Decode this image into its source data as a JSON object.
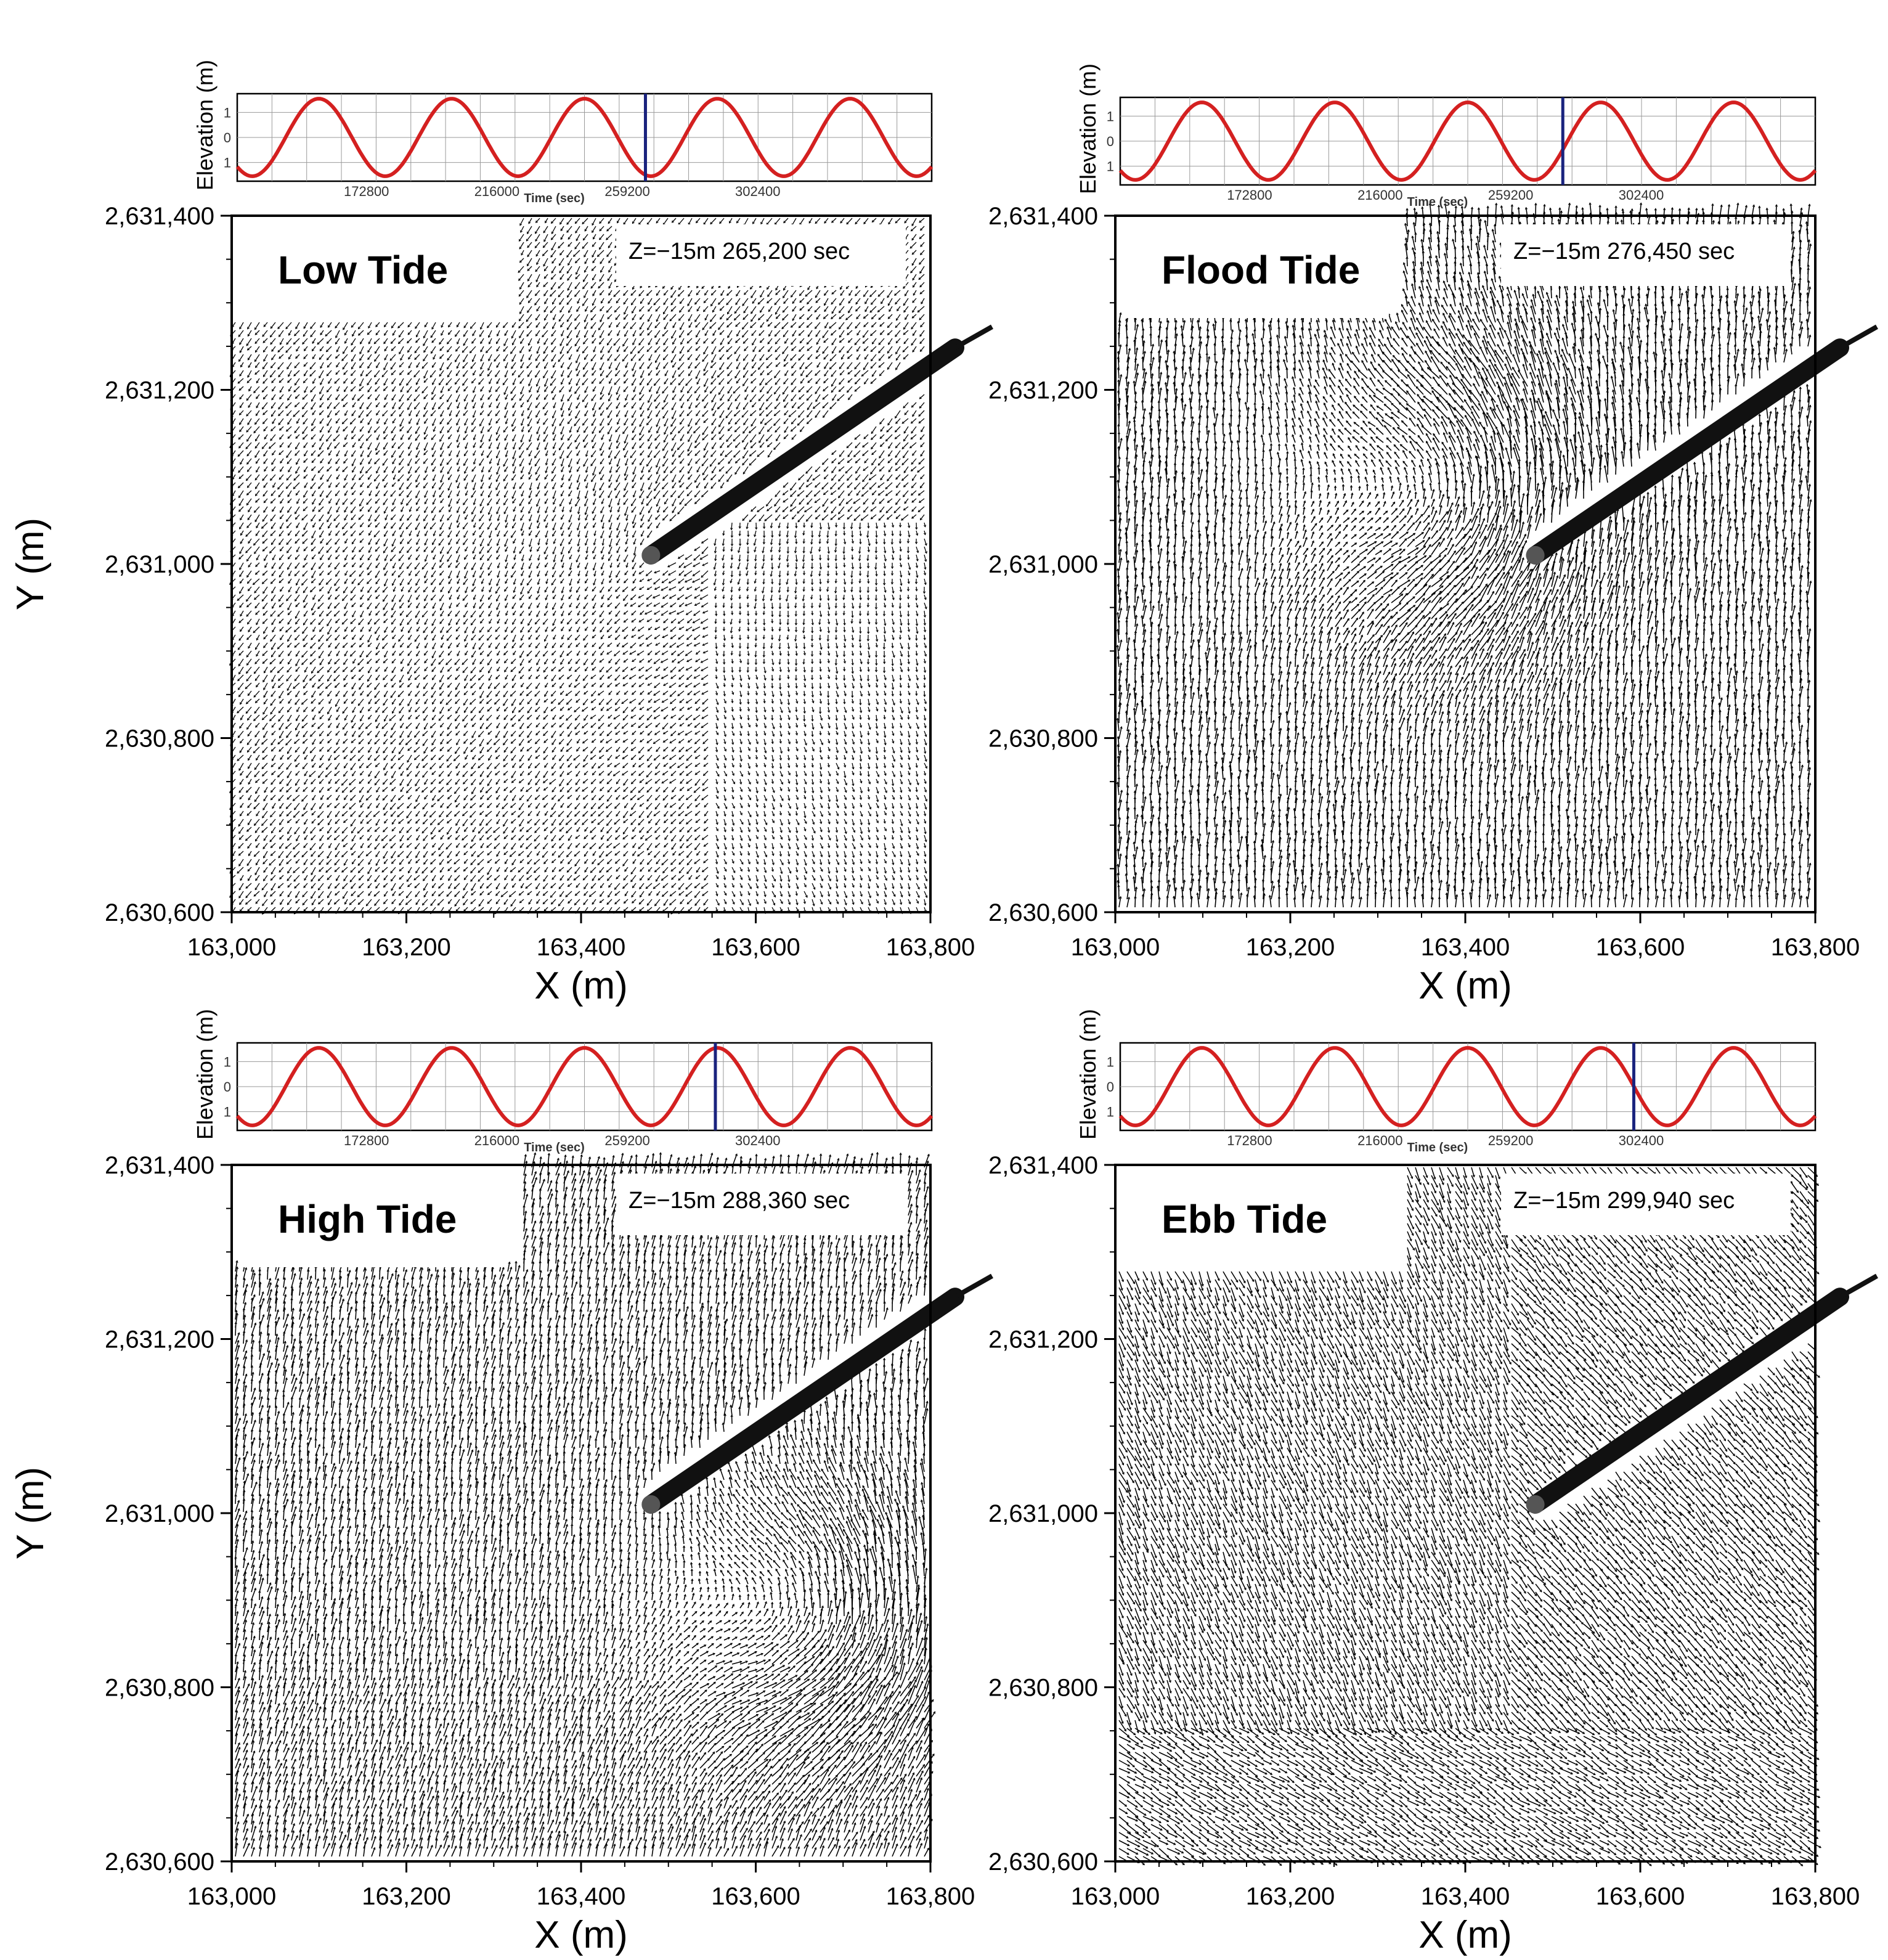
{
  "figure": {
    "colors": {
      "tide_curve": "#d42020",
      "time_marker": "#1a237e",
      "vectors": "#000000",
      "jetty": "#111111",
      "frame": "#000000"
    }
  },
  "chart_data": [
    {
      "type": "vector-field",
      "panel_label": "Low Tide",
      "stamp": "Z=−15m 265,200 sec",
      "xlabel": "X (m)",
      "ylabel": "Y (m)",
      "xlim": [
        163000,
        163800
      ],
      "ylim": [
        2630600,
        2631400
      ],
      "x_ticks": [
        "163,000",
        "163,200",
        "163,400",
        "163,600",
        "163,800"
      ],
      "y_ticks": [
        "2,630,600",
        "2,630,800",
        "2,631,000",
        "2,631,200",
        "2,631,400"
      ],
      "show_ylabel": true,
      "flow_pattern": "weak-seaward",
      "timeseries": {
        "type": "line",
        "xlabel": "Time (sec)",
        "ylabel": "Elevation (m)",
        "x_ticks": [
          "172800",
          "216000",
          "259200",
          "302400"
        ],
        "y_ticks": [
          "1",
          "0",
          "1"
        ],
        "marker_time": 265200
      }
    },
    {
      "type": "vector-field",
      "panel_label": "Flood Tide",
      "stamp": "Z=−15m 276,450 sec",
      "xlabel": "X (m)",
      "ylabel": "",
      "xlim": [
        163000,
        163800
      ],
      "ylim": [
        2630600,
        2631400
      ],
      "x_ticks": [
        "163,000",
        "163,200",
        "163,400",
        "163,600",
        "163,800"
      ],
      "y_ticks": [
        "2,630,600",
        "2,630,800",
        "2,631,000",
        "2,631,200",
        "2,631,400"
      ],
      "show_ylabel": false,
      "flow_pattern": "strong-northward-eddy",
      "timeseries": {
        "type": "line",
        "xlabel": "Time (sec)",
        "ylabel": "Elevation (m)",
        "x_ticks": [
          "172800",
          "216000",
          "259200",
          "302400"
        ],
        "y_ticks": [
          "1",
          "0",
          "1"
        ],
        "marker_time": 276450
      }
    },
    {
      "type": "vector-field",
      "panel_label": "High Tide",
      "stamp": "Z=−15m 288,360 sec",
      "xlabel": "X (m)",
      "ylabel": "Y (m)",
      "xlim": [
        163000,
        163800
      ],
      "ylim": [
        2630600,
        2631400
      ],
      "x_ticks": [
        "163,000",
        "163,200",
        "163,400",
        "163,600",
        "163,800"
      ],
      "y_ticks": [
        "2,630,600",
        "2,630,800",
        "2,631,000",
        "2,631,200",
        "2,631,400"
      ],
      "show_ylabel": true,
      "flow_pattern": "strong-eddy-offshore",
      "timeseries": {
        "type": "line",
        "xlabel": "Time (sec)",
        "ylabel": "Elevation (m)",
        "x_ticks": [
          "172800",
          "216000",
          "259200",
          "302400"
        ],
        "y_ticks": [
          "1",
          "0",
          "1"
        ],
        "marker_time": 288360
      }
    },
    {
      "type": "vector-field",
      "panel_label": "Ebb Tide",
      "stamp": "Z=−15m 299,940 sec",
      "xlabel": "X (m)",
      "ylabel": "",
      "xlim": [
        163000,
        163800
      ],
      "ylim": [
        2630600,
        2631400
      ],
      "x_ticks": [
        "163,000",
        "163,200",
        "163,400",
        "163,600",
        "163,800"
      ],
      "y_ticks": [
        "2,630,600",
        "2,630,800",
        "2,631,000",
        "2,631,200",
        "2,631,400"
      ],
      "show_ylabel": false,
      "flow_pattern": "strong-southeastward",
      "timeseries": {
        "type": "line",
        "xlabel": "Time (sec)",
        "ylabel": "Elevation (m)",
        "x_ticks": [
          "172800",
          "216000",
          "259200",
          "302400"
        ],
        "y_ticks": [
          "1",
          "0",
          "1"
        ],
        "marker_time": 299940
      }
    }
  ]
}
